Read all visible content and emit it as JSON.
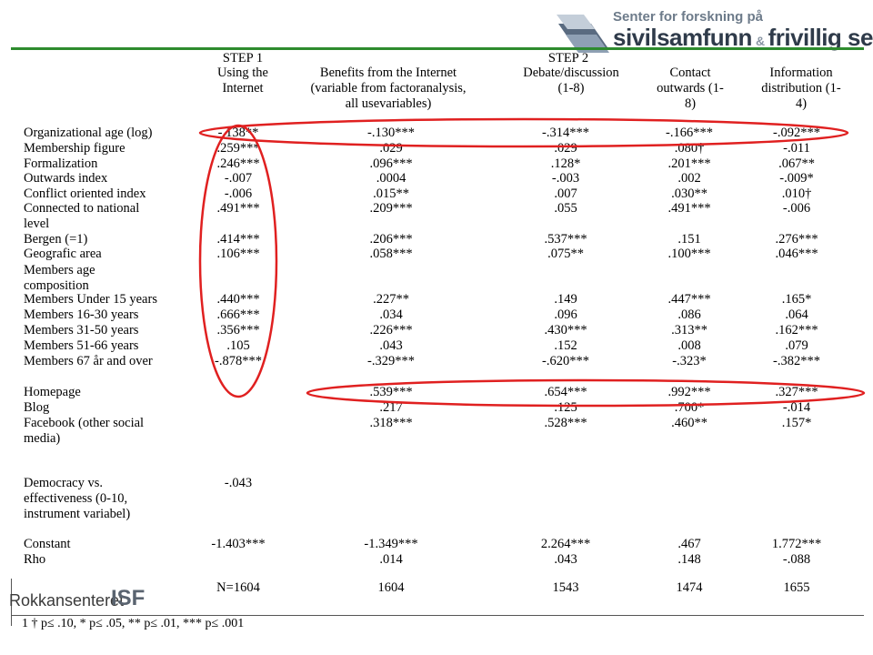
{
  "header_logo": {
    "line1": "Senter for forskning på",
    "line2": "sivilsamfunn",
    "amp": "&",
    "line3": "frivillig sektor"
  },
  "footer_logos": {
    "left": "Rokkansenteret",
    "right": "ISF"
  },
  "table": {
    "step1": "STEP 1",
    "step2": "STEP 2",
    "columns": [
      [
        "Using the",
        "Internet"
      ],
      [
        "Benefits from the Internet",
        "(variable from factoranalysis,",
        "all usevariables)"
      ],
      [
        "Debate/discussion",
        "(1-8)"
      ],
      [
        "Contact",
        "outwards (1-",
        "8)"
      ],
      [
        "Information",
        "distribution (1-",
        "4)"
      ]
    ],
    "rows": [
      {
        "label": [
          "Organizational age (log)"
        ],
        "values": [
          "-.138**",
          "-.130***",
          "-.314***",
          "-.166***",
          "-.092***"
        ]
      },
      {
        "label": [
          "Membership figure"
        ],
        "values": [
          ".259***",
          ".029",
          ".029",
          ".080†",
          "-.011"
        ]
      },
      {
        "label": [
          "Formalization"
        ],
        "values": [
          ".246***",
          ".096***",
          ".128*",
          ".201***",
          ".067**"
        ]
      },
      {
        "label": [
          "Outwards index"
        ],
        "values": [
          "-.007",
          ".0004",
          "-.003",
          ".002",
          "-.009*"
        ]
      },
      {
        "label": [
          "Conflict oriented index"
        ],
        "values": [
          "-.006",
          ".015**",
          ".007",
          ".030**",
          ".010†"
        ]
      },
      {
        "label": [
          "Connected to national",
          "level"
        ],
        "values": [
          ".491***",
          ".209***",
          ".055",
          ".491***",
          "-.006"
        ]
      },
      {
        "label": [
          "Bergen (=1)"
        ],
        "values": [
          ".414***",
          ".206***",
          ".537***",
          ".151",
          ".276***"
        ]
      },
      {
        "label": [
          "Geografic area"
        ],
        "values": [
          ".106***",
          ".058***",
          ".075**",
          ".100***",
          ".046***"
        ]
      },
      {
        "label": [
          "Members age",
          "composition"
        ],
        "values": [
          "",
          "",
          "",
          "",
          ""
        ]
      },
      {
        "label": [
          "Members Under 15 years"
        ],
        "values": [
          ".440***",
          ".227**",
          ".149",
          ".447***",
          ".165*"
        ]
      },
      {
        "label": [
          "Members 16-30 years"
        ],
        "values": [
          ".666***",
          ".034",
          ".096",
          ".086",
          ".064"
        ]
      },
      {
        "label": [
          "Members  31-50 years"
        ],
        "values": [
          ".356***",
          ".226***",
          ".430***",
          ".313**",
          ".162***"
        ]
      },
      {
        "label": [
          "Members 51-66 years"
        ],
        "values": [
          ".105",
          ".043",
          ".152",
          ".008",
          ".079"
        ]
      },
      {
        "label": [
          "Members 67 år and over"
        ],
        "values": [
          "-.878***",
          "-.329***",
          "-.620***",
          "-.323*",
          "-.382***"
        ]
      },
      {
        "label": [
          "Homepage"
        ],
        "values": [
          "",
          ".539***",
          ".654***",
          ".992***",
          ".327***"
        ]
      },
      {
        "label": [
          "Blog"
        ],
        "values": [
          "",
          ".217",
          ".125",
          ".700*",
          "-.014"
        ]
      },
      {
        "label": [
          "Facebook (other social",
          "media)"
        ],
        "values": [
          "",
          ".318***",
          ".528***",
          ".460**",
          ".157*"
        ]
      },
      {
        "label": [
          "Democracy vs.",
          "effectiveness (0-10,",
          "instrument variabel)"
        ],
        "values": [
          "-.043",
          "",
          "",
          "",
          ""
        ]
      },
      {
        "label": [
          "Constant"
        ],
        "values": [
          "-1.403***",
          "-1.349***",
          "2.264***",
          ".467",
          "1.772***"
        ]
      },
      {
        "label": [
          "Rho"
        ],
        "values": [
          "",
          ".014",
          ".043",
          ".148",
          "-.088"
        ]
      },
      {
        "label": [
          ""
        ],
        "values": [
          "N=1604",
          "1604",
          "1543",
          "1474",
          "1655"
        ]
      }
    ],
    "footnote": "1 † p≤ .10, * p≤ .05, ** p≤ .01, *** p≤ .001"
  },
  "colors": {
    "green_rule": "#2e8b2e",
    "annotation_red": "#e02020",
    "logo_dark": "#2f3b4a"
  }
}
